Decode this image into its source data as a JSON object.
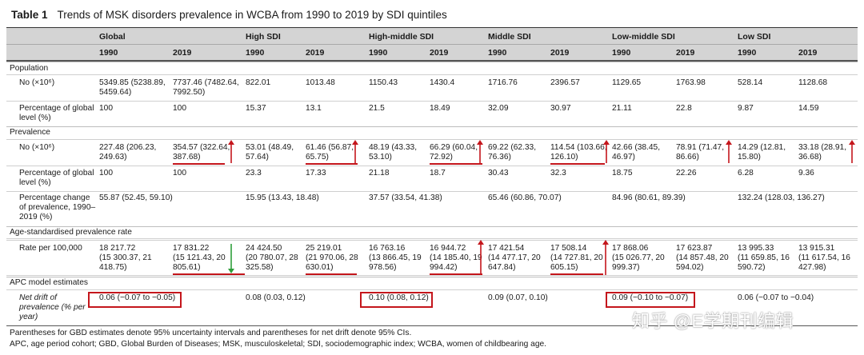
{
  "table": {
    "label": "Table 1",
    "title": "Trends of MSK disorders prevalence in WCBA from 1990 to 2019 by SDI quintiles",
    "groups": [
      "Global",
      "High SDI",
      "High-middle SDI",
      "Middle SDI",
      "Low-middle SDI",
      "Low SDI"
    ],
    "years": [
      "1990",
      "2019",
      "1990",
      "2019",
      "1990",
      "2019",
      "1990",
      "2019",
      "1990",
      "2019",
      "1990",
      "2019"
    ],
    "sections": {
      "population": "Population",
      "prevalence": "Prevalence",
      "age_std": "Age-standardised prevalence rate",
      "apc": "APC model estimates"
    },
    "rows": {
      "pop_no": {
        "label": [
          "No (×10⁶)"
        ],
        "cells": [
          [
            "5349.85 (5238.89,",
            "5459.64)"
          ],
          [
            "7737.46 (7482.64,",
            "7992.50)"
          ],
          [
            "822.01"
          ],
          [
            "1013.48"
          ],
          [
            "1150.43"
          ],
          [
            "1430.4"
          ],
          [
            "1716.76"
          ],
          [
            "2396.57"
          ],
          [
            "1129.65"
          ],
          [
            "1763.98"
          ],
          [
            "528.14"
          ],
          [
            "1128.68"
          ]
        ]
      },
      "pop_pct": {
        "label": [
          "Percentage of global",
          "level (%)"
        ],
        "cells": [
          [
            "100"
          ],
          [
            "100"
          ],
          [
            "15.37"
          ],
          [
            "13.1"
          ],
          [
            "21.5"
          ],
          [
            "18.49"
          ],
          [
            "32.09"
          ],
          [
            "30.97"
          ],
          [
            "21.11"
          ],
          [
            "22.8"
          ],
          [
            "9.87"
          ],
          [
            "14.59"
          ]
        ]
      },
      "prev_no": {
        "label": [
          "No (×10⁶)"
        ],
        "cells": [
          [
            "227.48 (206.23,",
            "249.63)"
          ],
          [
            "354.57 (322.64,",
            "387.68)"
          ],
          [
            "53.01 (48.49,",
            "57.64)"
          ],
          [
            "61.46 (56.87,",
            "65.75)"
          ],
          [
            "48.19 (43.33,",
            "53.10)"
          ],
          [
            "66.29 (60.04,",
            "72.92)"
          ],
          [
            "69.22 (62.33,",
            "76.36)"
          ],
          [
            "114.54 (103.66,",
            "126.10)"
          ],
          [
            "42.66 (38.45,",
            "46.97)"
          ],
          [
            "78.91 (71.47,",
            "86.66)"
          ],
          [
            "14.29 (12.81,",
            "15.80)"
          ],
          [
            "33.18 (28.91,",
            "36.68)"
          ]
        ]
      },
      "prev_pct": {
        "label": [
          "Percentage of global",
          "level (%)"
        ],
        "cells": [
          [
            "100"
          ],
          [
            "100"
          ],
          [
            "23.3"
          ],
          [
            "17.33"
          ],
          [
            "21.18"
          ],
          [
            "18.7"
          ],
          [
            "30.43"
          ],
          [
            "32.3"
          ],
          [
            "18.75"
          ],
          [
            "22.26"
          ],
          [
            "6.28"
          ],
          [
            "9.36"
          ]
        ]
      },
      "prev_change": {
        "label": [
          "Percentage change",
          "of prevalence, 1990–",
          "2019 (%)"
        ],
        "cells": [
          [
            "55.87 (52.45, 59.10)"
          ],
          [
            "15.95 (13.43, 18.48)"
          ],
          [
            "37.57 (33.54, 41.38)"
          ],
          [
            "65.46 (60.86, 70.07)"
          ],
          [
            "84.96 (80.61, 89.39)"
          ],
          [
            "132.24 (128.03, 136.27)"
          ]
        ]
      },
      "rate": {
        "label": [
          "Rate per 100,000"
        ],
        "cells": [
          [
            "18 217.72",
            "(15 300.37, 21",
            "418.75)"
          ],
          [
            "17 831.22",
            "(15 121.43, 20",
            "805.61)"
          ],
          [
            "24 424.50",
            "(20 780.07, 28",
            "325.58)"
          ],
          [
            "25 219.01",
            "(21 970.06, 28",
            "630.01)"
          ],
          [
            "16 763.16",
            "(13 866.45, 19",
            "978.56)"
          ],
          [
            "16 944.72",
            "(14 185.40, 19",
            "994.42)"
          ],
          [
            "17 421.54",
            "(14 477.17, 20",
            "647.84)"
          ],
          [
            "17 508.14",
            "(14 727.81, 20",
            "605.15)"
          ],
          [
            "17 868.06",
            "(15 026.77, 20",
            "999.37)"
          ],
          [
            "17 623.87",
            "(14 857.48, 20",
            "594.02)"
          ],
          [
            "13 995.33",
            "(11 659.85, 16",
            "590.72)"
          ],
          [
            "13 915.31",
            "(11 617.54, 16",
            "427.98)"
          ]
        ]
      },
      "drift": {
        "label": [
          "Net drift of",
          "prevalence (% per",
          "year)"
        ],
        "cells": [
          [
            "0.06 (−0.07 to −0.05)"
          ],
          [
            "0.08 (0.03, 0.12)"
          ],
          [
            "0.10 (0.08, 0.12)"
          ],
          [
            "0.09 (0.07, 0.10)"
          ],
          [
            "0.09 (−0.10 to −0.07)"
          ],
          [
            "0.06 (−0.07 to −0.04)"
          ]
        ]
      }
    },
    "footnotes": [
      "Parentheses for GBD estimates denote 95% uncertainty intervals and parentheses for net drift denote 95% CIs.",
      "APC, age period cohort; GBD, Global Burden of Diseases; MSK, musculoskeletal; SDI, sociodemographic index; WCBA, women of childbearing age."
    ],
    "watermark": "知乎 @E学期刊编辑"
  },
  "annotations": {
    "red": "#c4161c",
    "green": "#2e9e3a",
    "up_arrow_cols": [
      1,
      3,
      5,
      7,
      9,
      11
    ],
    "down_arrow_cols": [
      1
    ],
    "rate_up_arrow_cols": [
      5,
      7
    ],
    "boxed_drift_cells": [
      0,
      2,
      4
    ]
  }
}
